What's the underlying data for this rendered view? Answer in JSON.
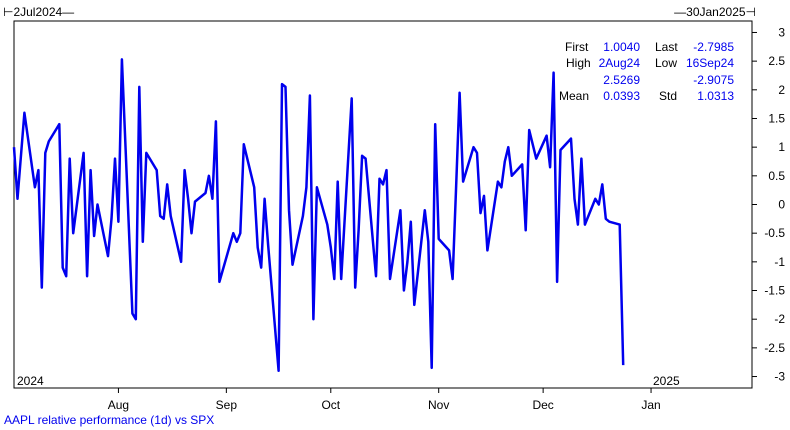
{
  "header": {
    "range_start": "2Jul2024",
    "range_end": "30Jan2025"
  },
  "years": {
    "start": "2024",
    "end": "2025"
  },
  "caption": "AAPL relative performance (1d) vs SPX",
  "stats": {
    "first_label": "First",
    "first_value": "1.0040",
    "last_label": "Last",
    "last_value": "-2.7985",
    "high_label": "High",
    "high_date": "2Aug24",
    "low_label": "Low",
    "low_date": "16Sep24",
    "high_value": "2.5269",
    "low_value": "-2.9075",
    "mean_label": "Mean",
    "mean_value": "0.0393",
    "std_label": "Std",
    "std_value": "1.0313"
  },
  "colors": {
    "line": "#0000ee",
    "axis": "#000000"
  },
  "chart_data": {
    "type": "line",
    "title": "AAPL relative performance (1d) vs SPX",
    "xlabel": "",
    "ylabel": "",
    "x_range": [
      "2024-07-02",
      "2025-01-30"
    ],
    "ylim": [
      -3.2,
      3.2
    ],
    "y_ticks": [
      3,
      2.5,
      2,
      1.5,
      1,
      0.5,
      0,
      -0.5,
      -1,
      -1.5,
      -2,
      -2.5,
      -3
    ],
    "x_ticks": [
      {
        "label": "Aug",
        "date": "2024-08-01"
      },
      {
        "label": "Sep",
        "date": "2024-09-01"
      },
      {
        "label": "Oct",
        "date": "2024-10-01"
      },
      {
        "label": "Nov",
        "date": "2024-11-01"
      },
      {
        "label": "Dec",
        "date": "2024-12-01"
      },
      {
        "label": "Jan",
        "date": "2025-01-01"
      }
    ],
    "grid": false,
    "series": [
      {
        "values": [
          [
            "2024-07-02",
            1.0
          ],
          [
            "2024-07-03",
            0.1
          ],
          [
            "2024-07-05",
            1.6
          ],
          [
            "2024-07-08",
            0.3
          ],
          [
            "2024-07-09",
            0.6
          ],
          [
            "2024-07-10",
            -1.45
          ],
          [
            "2024-07-11",
            0.9
          ],
          [
            "2024-07-12",
            1.1
          ],
          [
            "2024-07-15",
            1.4
          ],
          [
            "2024-07-16",
            -1.1
          ],
          [
            "2024-07-17",
            -1.25
          ],
          [
            "2024-07-18",
            0.8
          ],
          [
            "2024-07-19",
            -0.5
          ],
          [
            "2024-07-22",
            0.9
          ],
          [
            "2024-07-23",
            -1.25
          ],
          [
            "2024-07-24",
            0.6
          ],
          [
            "2024-07-25",
            -0.55
          ],
          [
            "2024-07-26",
            0.0
          ],
          [
            "2024-07-29",
            -0.9
          ],
          [
            "2024-07-30",
            -0.25
          ],
          [
            "2024-07-31",
            0.8
          ],
          [
            "2024-08-01",
            -0.3
          ],
          [
            "2024-08-02",
            2.53
          ],
          [
            "2024-08-05",
            -1.9
          ],
          [
            "2024-08-06",
            -2.0
          ],
          [
            "2024-08-07",
            2.05
          ],
          [
            "2024-08-08",
            -0.65
          ],
          [
            "2024-08-09",
            0.9
          ],
          [
            "2024-08-12",
            0.6
          ],
          [
            "2024-08-13",
            -0.2
          ],
          [
            "2024-08-14",
            -0.25
          ],
          [
            "2024-08-15",
            0.35
          ],
          [
            "2024-08-16",
            -0.2
          ],
          [
            "2024-08-19",
            -1.0
          ],
          [
            "2024-08-20",
            0.6
          ],
          [
            "2024-08-21",
            0.1
          ],
          [
            "2024-08-22",
            -0.5
          ],
          [
            "2024-08-23",
            0.05
          ],
          [
            "2024-08-26",
            0.2
          ],
          [
            "2024-08-27",
            0.5
          ],
          [
            "2024-08-28",
            0.1
          ],
          [
            "2024-08-29",
            1.45
          ],
          [
            "2024-08-30",
            -1.35
          ],
          [
            "2024-09-03",
            -0.5
          ],
          [
            "2024-09-04",
            -0.65
          ],
          [
            "2024-09-05",
            -0.5
          ],
          [
            "2024-09-06",
            1.05
          ],
          [
            "2024-09-09",
            0.3
          ],
          [
            "2024-09-10",
            -0.75
          ],
          [
            "2024-09-11",
            -1.1
          ],
          [
            "2024-09-12",
            0.1
          ],
          [
            "2024-09-13",
            -0.7
          ],
          [
            "2024-09-16",
            -2.9
          ],
          [
            "2024-09-17",
            2.1
          ],
          [
            "2024-09-18",
            2.05
          ],
          [
            "2024-09-19",
            -0.1
          ],
          [
            "2024-09-20",
            -1.05
          ],
          [
            "2024-09-23",
            -0.2
          ],
          [
            "2024-09-24",
            0.3
          ],
          [
            "2024-09-25",
            1.9
          ],
          [
            "2024-09-26",
            -2.0
          ],
          [
            "2024-09-27",
            0.3
          ],
          [
            "2024-09-30",
            -0.35
          ],
          [
            "2024-10-01",
            -0.75
          ],
          [
            "2024-10-02",
            -1.3
          ],
          [
            "2024-10-03",
            0.4
          ],
          [
            "2024-10-04",
            -1.3
          ],
          [
            "2024-10-07",
            1.85
          ],
          [
            "2024-10-08",
            -1.45
          ],
          [
            "2024-10-09",
            -0.45
          ],
          [
            "2024-10-10",
            0.85
          ],
          [
            "2024-10-11",
            0.8
          ],
          [
            "2024-10-14",
            -1.25
          ],
          [
            "2024-10-15",
            0.45
          ],
          [
            "2024-10-16",
            0.35
          ],
          [
            "2024-10-17",
            0.6
          ],
          [
            "2024-10-18",
            -1.3
          ],
          [
            "2024-10-21",
            -0.1
          ],
          [
            "2024-10-22",
            -1.5
          ],
          [
            "2024-10-23",
            -1.0
          ],
          [
            "2024-10-24",
            -0.3
          ],
          [
            "2024-10-25",
            -1.75
          ],
          [
            "2024-10-28",
            -0.1
          ],
          [
            "2024-10-29",
            -0.65
          ],
          [
            "2024-10-30",
            -2.85
          ],
          [
            "2024-10-31",
            1.4
          ],
          [
            "2024-11-01",
            -0.6
          ],
          [
            "2024-11-04",
            -0.8
          ],
          [
            "2024-11-05",
            -1.3
          ],
          [
            "2024-11-06",
            0.3
          ],
          [
            "2024-11-07",
            1.95
          ],
          [
            "2024-11-08",
            0.4
          ],
          [
            "2024-11-11",
            1.0
          ],
          [
            "2024-11-12",
            0.9
          ],
          [
            "2024-11-13",
            -0.15
          ],
          [
            "2024-11-14",
            0.15
          ],
          [
            "2024-11-15",
            -0.8
          ],
          [
            "2024-11-18",
            0.4
          ],
          [
            "2024-11-19",
            0.3
          ],
          [
            "2024-11-20",
            0.75
          ],
          [
            "2024-11-21",
            1.0
          ],
          [
            "2024-11-22",
            0.5
          ],
          [
            "2024-11-25",
            0.7
          ],
          [
            "2024-11-26",
            -0.45
          ],
          [
            "2024-11-27",
            1.3
          ],
          [
            "2024-11-29",
            0.8
          ],
          [
            "2024-12-02",
            1.2
          ],
          [
            "2024-12-03",
            0.65
          ],
          [
            "2024-12-04",
            2.3
          ],
          [
            "2024-12-05",
            -1.35
          ],
          [
            "2024-12-06",
            0.95
          ],
          [
            "2024-12-09",
            1.15
          ],
          [
            "2024-12-10",
            0.1
          ],
          [
            "2024-12-11",
            -0.35
          ],
          [
            "2024-12-12",
            0.8
          ],
          [
            "2024-12-13",
            -0.35
          ],
          [
            "2024-12-16",
            0.1
          ],
          [
            "2024-12-17",
            0.0
          ],
          [
            "2024-12-18",
            0.35
          ],
          [
            "2024-12-19",
            -0.25
          ],
          [
            "2024-12-20",
            -0.3
          ],
          [
            "2024-12-23",
            -0.35
          ],
          [
            "2024-12-24",
            -2.8
          ]
        ]
      }
    ]
  }
}
